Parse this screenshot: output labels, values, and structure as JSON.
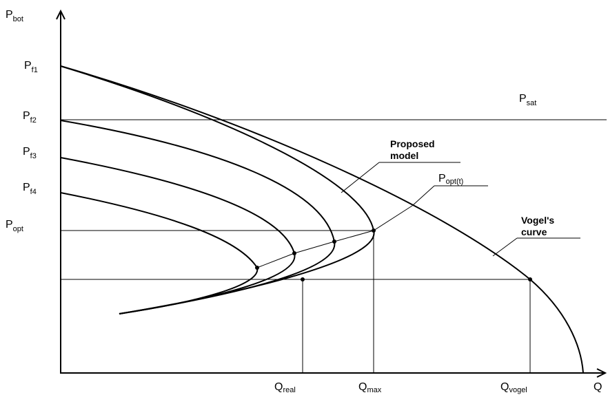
{
  "chart_data": {
    "type": "line",
    "title": "",
    "xlabel": "Q",
    "ylabel": {
      "main": "P",
      "sub": "bot"
    },
    "y_levels": [
      {
        "name": "Pf1",
        "main": "P",
        "sub": "f1"
      },
      {
        "name": "Pf2",
        "main": "P",
        "sub": "f2"
      },
      {
        "name": "Pf3",
        "main": "P",
        "sub": "f3"
      },
      {
        "name": "Pf4",
        "main": "P",
        "sub": "f4"
      },
      {
        "name": "Popt",
        "main": "P",
        "sub": "opt"
      }
    ],
    "x_levels": [
      {
        "name": "Qreal",
        "main": "Q",
        "sub": "real"
      },
      {
        "name": "Qmax",
        "main": "Q",
        "sub": "max"
      },
      {
        "name": "Qvogel",
        "main": "Q",
        "sub": "vogel"
      }
    ],
    "annotations": {
      "psat": {
        "main": "P",
        "sub": "sat"
      },
      "proposed_line1": "Proposed",
      "proposed_line2": "model",
      "popt_t": {
        "main": "P",
        "sub": "opt(t)"
      },
      "vogel_line1": "Vogel's",
      "vogel_line2": "curve"
    },
    "series": [
      {
        "name": "Vogel's curve"
      },
      {
        "name": "Proposed model"
      }
    ]
  }
}
